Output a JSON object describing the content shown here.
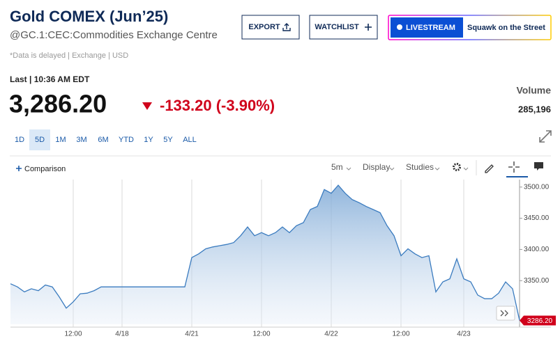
{
  "header": {
    "title": "Gold COMEX (Jun’25)",
    "subtitle": "@GC.1:CEC:Commodities Exchange Centre",
    "note": "*Data is delayed | Exchange | USD",
    "buttons": [
      "EXPORT",
      "WATCHLIST"
    ],
    "livestream": "LIVESTREAM",
    "show": "Squawk on the Street"
  },
  "quote": {
    "last_label": "Last | 10:36 AM EDT",
    "price": "3,286.20",
    "change": "-133.20 (-3.90%)",
    "volume_label": "Volume",
    "volume": "285,196"
  },
  "ranges": [
    "1D",
    "5D",
    "1M",
    "3M",
    "6M",
    "YTD",
    "1Y",
    "5Y",
    "ALL"
  ],
  "selected_range": "5D",
  "toolbar": {
    "comparison": "Comparison",
    "interval": "5m",
    "display": "Display",
    "studies": "Studies"
  },
  "chart_data": {
    "type": "area",
    "categories": [
      null,
      null,
      null,
      null,
      null,
      null,
      null,
      null,
      null,
      "12:00",
      null,
      null,
      null,
      null,
      null,
      null,
      "4/18",
      null,
      null,
      null,
      null,
      null,
      null,
      null,
      null,
      null,
      "4/21",
      null,
      null,
      null,
      null,
      null,
      null,
      null,
      null,
      null,
      "12:00",
      null,
      null,
      null,
      null,
      null,
      null,
      null,
      null,
      null,
      "4/22",
      null,
      null,
      null,
      null,
      null,
      null,
      null,
      null,
      null,
      "12:00",
      null,
      null,
      null,
      null,
      null,
      null,
      null,
      null,
      "4/23",
      null,
      null,
      null,
      null,
      null,
      null,
      null,
      null
    ],
    "series": [
      {
        "name": "Gold COMEX",
        "color": "#3a7bbf",
        "values": [
          3345,
          3340,
          3332,
          3337,
          3334,
          3343,
          3340,
          3324,
          3306,
          3316,
          3329,
          3330,
          3334,
          3340,
          3340,
          3340,
          3340,
          3340,
          3340,
          3340,
          3340,
          3340,
          3340,
          3340,
          3340,
          3340,
          3387,
          3393,
          3401,
          3404,
          3406,
          3408,
          3411,
          3422,
          3436,
          3422,
          3427,
          3422,
          3427,
          3436,
          3427,
          3438,
          3443,
          3464,
          3469,
          3496,
          3490,
          3503,
          3490,
          3480,
          3475,
          3469,
          3464,
          3459,
          3438,
          3422,
          3390,
          3401,
          3393,
          3387,
          3390,
          3332,
          3348,
          3353,
          3385,
          3353,
          3348,
          3327,
          3321,
          3321,
          3330,
          3348,
          3337,
          3286.2
        ]
      }
    ],
    "ylim": [
      3280,
      3512
    ],
    "yticks": [
      {
        "value": 3350,
        "label": "3350.00"
      },
      {
        "value": 3400,
        "label": "3400.00"
      },
      {
        "value": 3450,
        "label": "3450.00"
      },
      {
        "value": 3500,
        "label": "3500.00"
      }
    ],
    "last_label": "3286.20",
    "grid": true
  }
}
